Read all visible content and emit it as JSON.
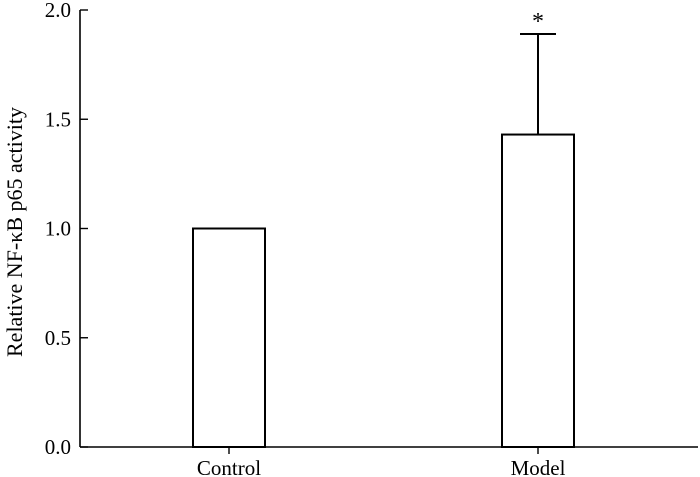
{
  "chart_data": {
    "type": "bar",
    "categories": [
      "Control",
      "Model"
    ],
    "values": [
      1.0,
      1.43
    ],
    "error_upper": [
      0.0,
      0.46
    ],
    "annotations": [
      "",
      "*"
    ],
    "ylabel": "Relative NF-κB p65 activity",
    "ylim": [
      0,
      2.0
    ],
    "yticks": [
      0.0,
      0.5,
      1.0,
      1.5,
      2.0
    ],
    "ytick_labels": [
      "0.0",
      "0.5",
      "1.0",
      "1.5",
      "2.0"
    ],
    "grid": false,
    "colors": {
      "bar_fill": "#ffffff",
      "bar_stroke": "#000000"
    }
  }
}
